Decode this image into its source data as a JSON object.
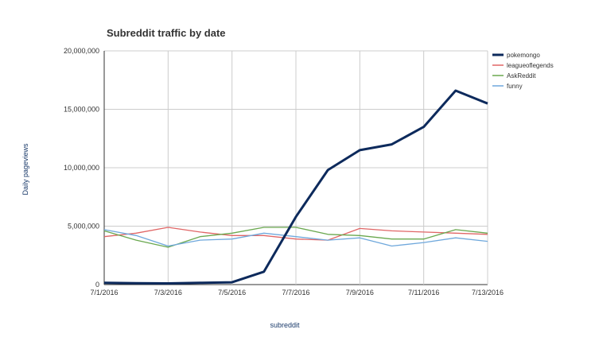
{
  "chart_data": {
    "type": "line",
    "title": "Subreddit traffic by date",
    "xlabel": "subreddit",
    "ylabel": "Daily pageviews",
    "categories": [
      "7/1/2016",
      "7/2/2016",
      "7/3/2016",
      "7/4/2016",
      "7/5/2016",
      "7/6/2016",
      "7/7/2016",
      "7/8/2016",
      "7/9/2016",
      "7/10/2016",
      "7/11/2016",
      "7/12/2016",
      "7/13/2016"
    ],
    "x_tick_labels": [
      "7/1/2016",
      "7/3/2016",
      "7/5/2016",
      "7/7/2016",
      "7/9/2016",
      "7/11/2016",
      "7/13/2016"
    ],
    "y_tick_labels": [
      "0",
      "5,000,000",
      "10,000,000",
      "15,000,000",
      "20,000,000"
    ],
    "ylim": [
      0,
      20000000
    ],
    "grid": true,
    "legend_position": "right",
    "series": [
      {
        "name": "pokemongo",
        "color": "#0d2a5c",
        "width": 3,
        "values": [
          150000,
          120000,
          100000,
          150000,
          200000,
          1100000,
          5800000,
          9800000,
          11500000,
          12000000,
          13500000,
          16600000,
          15500000
        ]
      },
      {
        "name": "leagueoflegends",
        "color": "#e06666",
        "width": 1.3,
        "values": [
          4100000,
          4400000,
          4900000,
          4500000,
          4200000,
          4200000,
          3900000,
          3800000,
          4800000,
          4600000,
          4500000,
          4400000,
          4300000
        ]
      },
      {
        "name": "AskReddit",
        "color": "#6aa84f",
        "width": 1.3,
        "values": [
          4600000,
          3800000,
          3200000,
          4100000,
          4400000,
          4900000,
          4900000,
          4300000,
          4200000,
          3900000,
          3900000,
          4700000,
          4400000
        ]
      },
      {
        "name": "funny",
        "color": "#6fa8dc",
        "width": 1.3,
        "values": [
          4700000,
          4200000,
          3300000,
          3800000,
          3900000,
          4400000,
          4100000,
          3800000,
          4000000,
          3300000,
          3600000,
          4000000,
          3700000
        ]
      }
    ]
  }
}
